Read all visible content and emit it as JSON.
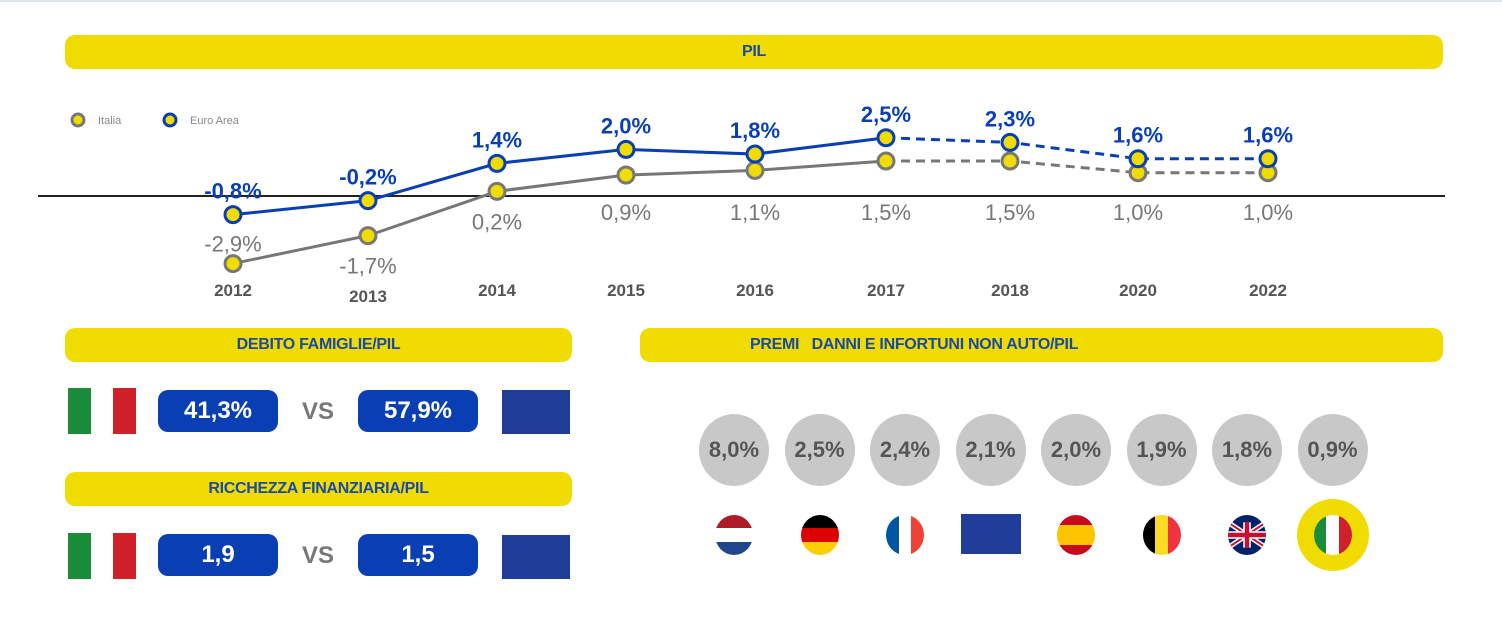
{
  "chart_data": {
    "type": "line",
    "title": "PIL",
    "categories": [
      "2012",
      "2013",
      "2014",
      "2015",
      "2016",
      "2017",
      "2018",
      "2020",
      "2022"
    ],
    "series": [
      {
        "name": "Italia",
        "values": [
          -2.9,
          -1.7,
          0.2,
          0.9,
          1.1,
          1.5,
          1.5,
          1.0,
          1.0
        ],
        "labels": [
          "-2,9%",
          "-1,7%",
          "0,2%",
          "0,9%",
          "1,1%",
          "1,5%",
          "1,5%",
          "1,0%",
          "1,0%"
        ],
        "color": "#777777"
      },
      {
        "name": "Euro Area",
        "values": [
          -0.8,
          -0.2,
          1.4,
          2.0,
          1.8,
          2.5,
          2.3,
          1.6,
          1.6
        ],
        "labels": [
          "-0,8%",
          "-0,2%",
          "1,4%",
          "2,0%",
          "1,8%",
          "2,5%",
          "2,3%",
          "1,6%",
          "1,6%"
        ],
        "color": "#0a3fb4"
      }
    ],
    "forecast_from": "2017",
    "legend": "top-left",
    "marker_fill": "#f0dc00"
  },
  "debito": {
    "title": "DEBITO FAMIGLIE/PIL",
    "italia": "41,3%",
    "vs": "VS",
    "euro": "57,9%"
  },
  "ricchezza": {
    "title": "RICCHEZZA FINANZIARIA/PIL",
    "italia": "1,9",
    "vs": "VS",
    "euro": "1,5"
  },
  "premi": {
    "title": "PREMI   DANNI E INFORTUNI NON AUTO/PIL",
    "items": [
      {
        "country": "netherlands-flag",
        "value": "8,0%"
      },
      {
        "country": "germany-flag",
        "value": "2,5%"
      },
      {
        "country": "france-flag",
        "value": "2,4%"
      },
      {
        "country": "eu-flag",
        "value": "2,1%"
      },
      {
        "country": "spain-flag",
        "value": "2,0%"
      },
      {
        "country": "belgium-flag",
        "value": "1,9%"
      },
      {
        "country": "uk-flag",
        "value": "1,8%"
      },
      {
        "country": "italy-flag",
        "value": "0,9%",
        "highlighted": true
      }
    ]
  },
  "colors": {
    "yellow": "#f0dc00",
    "blue": "#0a3fb4",
    "grey": "#777777"
  }
}
